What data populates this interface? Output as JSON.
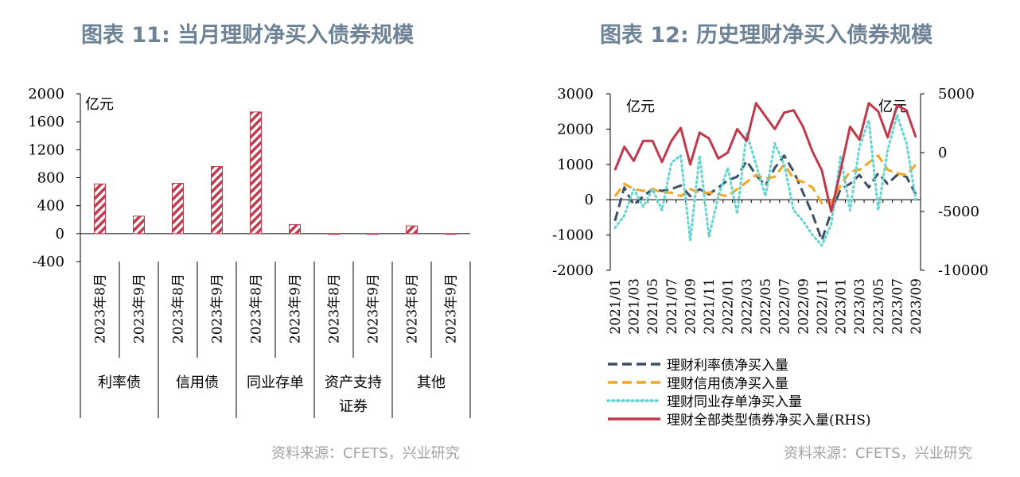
{
  "left": {
    "title": "图表 11: 当月理财净买入债券规模",
    "source": "资料来源：CFETS，兴业研究"
  },
  "right": {
    "title": "图表 12: 历史理财净买入债券规模",
    "source": "资料来源：CFETS，兴业研究"
  },
  "colors": {
    "title": "#6e8296",
    "bar_hatch": "#c03a4c",
    "rate_bond": "#3c4f66",
    "credit_bond": "#f2a623",
    "ncd": "#66d4d1",
    "total": "#c0394b"
  },
  "chart_data": [
    {
      "type": "bar",
      "title": "图表 11: 当月理财净买入债券规模",
      "unit": "亿元",
      "ylim": [
        -400,
        2000
      ],
      "yticks": [
        "2000",
        "1600",
        "1200",
        "800",
        "400",
        "0",
        "-400"
      ],
      "categories": [
        "2023年8月",
        "2023年9月",
        "2023年8月",
        "2023年9月",
        "2023年8月",
        "2023年9月",
        "2023年8月",
        "2023年9月",
        "2023年8月",
        "2023年9月"
      ],
      "groups": [
        {
          "name": "利率债",
          "lines": [
            "利率债"
          ]
        },
        {
          "name": "信用债",
          "lines": [
            "信用债"
          ]
        },
        {
          "name": "同业存单",
          "lines": [
            "同业存单"
          ]
        },
        {
          "name": "资产支持证券",
          "lines": [
            "资产支持",
            "证券"
          ]
        },
        {
          "name": "其他",
          "lines": [
            "其他"
          ]
        }
      ],
      "values": [
        710,
        250,
        720,
        960,
        1740,
        130,
        -10,
        -10,
        110,
        -10
      ],
      "pattern": "diagonal-hatch",
      "legend": "none",
      "grid": false
    },
    {
      "type": "line",
      "title": "图表 12: 历史理财净买入债券规模",
      "unit": "亿元",
      "ylim": [
        -2000,
        3000
      ],
      "yticks": [
        "3000",
        "2000",
        "1000",
        "0",
        "-1000",
        "-2000"
      ],
      "y2lim": [
        -10000,
        5000
      ],
      "y2ticks": [
        "5000",
        "0",
        "-5000",
        "-10000"
      ],
      "x": [
        "2021/01",
        "2021/02",
        "2021/03",
        "2021/04",
        "2021/05",
        "2021/06",
        "2021/07",
        "2021/08",
        "2021/09",
        "2021/10",
        "2021/11",
        "2021/12",
        "2022/01",
        "2022/02",
        "2022/03",
        "2022/04",
        "2022/05",
        "2022/06",
        "2022/07",
        "2022/08",
        "2022/09",
        "2022/10",
        "2022/11",
        "2022/12",
        "2023/01",
        "2023/02",
        "2023/03",
        "2023/04",
        "2023/05",
        "2023/06",
        "2023/07",
        "2023/08",
        "2023/09"
      ],
      "xtick_labels": [
        "2021/01",
        "2021/03",
        "2021/05",
        "2021/07",
        "2021/09",
        "2021/11",
        "2022/01",
        "2022/03",
        "2022/05",
        "2022/07",
        "2022/09",
        "2022/11",
        "2023/01",
        "2023/03",
        "2023/05",
        "2023/07",
        "2023/09"
      ],
      "series": [
        {
          "name": "理财利率债净买入量",
          "axis": "left",
          "style": "dashed",
          "values": [
            -600,
            350,
            -150,
            100,
            300,
            250,
            300,
            400,
            100,
            300,
            150,
            350,
            550,
            650,
            1100,
            700,
            400,
            900,
            1250,
            800,
            200,
            -400,
            -1150,
            -350,
            300,
            450,
            700,
            350,
            750,
            450,
            700,
            650,
            150
          ]
        },
        {
          "name": "理财信用债净买入量",
          "axis": "left",
          "style": "dashed",
          "values": [
            100,
            450,
            300,
            250,
            300,
            200,
            200,
            100,
            300,
            200,
            200,
            150,
            100,
            300,
            500,
            700,
            600,
            650,
            1000,
            600,
            500,
            350,
            -100,
            -100,
            400,
            800,
            850,
            1050,
            1250,
            850,
            750,
            700,
            1000
          ]
        },
        {
          "name": "理财同业存单净买入量",
          "axis": "left",
          "style": "dotted",
          "values": [
            -800,
            -450,
            300,
            -200,
            300,
            -300,
            1050,
            1250,
            -1150,
            1250,
            -1050,
            100,
            900,
            -400,
            1900,
            1000,
            100,
            1600,
            1000,
            -300,
            -600,
            -1000,
            -1300,
            -700,
            1250,
            -300,
            1500,
            2250,
            -300,
            1400,
            2400,
            1600,
            0
          ]
        },
        {
          "name": "理财全部类型债券净买入量(RHS)",
          "axis": "right",
          "style": "solid",
          "values": [
            -1500,
            500,
            -700,
            1000,
            1000,
            -800,
            1000,
            2100,
            -1000,
            1700,
            1200,
            -500,
            0,
            2000,
            1000,
            4200,
            3100,
            2000,
            3400,
            3600,
            2200,
            100,
            -1500,
            -5000,
            -1500,
            2200,
            1100,
            4200,
            3500,
            1300,
            4000,
            3600,
            1300
          ]
        }
      ],
      "legend": "below",
      "grid": false
    }
  ]
}
